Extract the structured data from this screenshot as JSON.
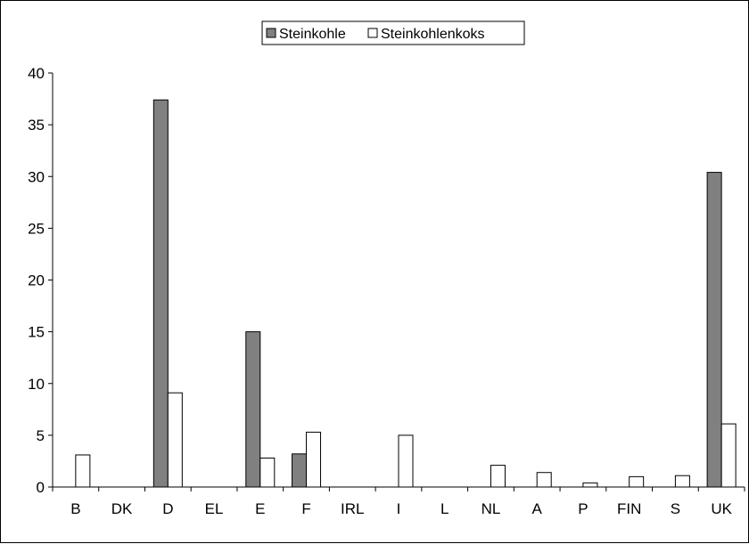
{
  "chart_data": {
    "type": "bar",
    "title": "",
    "xlabel": "",
    "ylabel": "",
    "categories": [
      "B",
      "DK",
      "D",
      "EL",
      "E",
      "F",
      "IRL",
      "I",
      "L",
      "NL",
      "A",
      "P",
      "FIN",
      "S",
      "UK"
    ],
    "series": [
      {
        "name": "Steinkohle",
        "color": "#808080",
        "values": [
          0,
          0,
          37.4,
          0,
          15.0,
          3.2,
          0,
          0,
          0,
          0,
          0,
          0,
          0,
          0,
          30.4
        ]
      },
      {
        "name": "Steinkohlenkoks",
        "color": "#ffffff",
        "values": [
          3.1,
          0,
          9.1,
          0,
          2.8,
          5.3,
          0,
          5.0,
          0,
          2.1,
          1.4,
          0.4,
          1.0,
          1.1,
          6.1
        ]
      }
    ],
    "ylim": [
      0,
      40
    ],
    "yticks": [
      0,
      5,
      10,
      15,
      20,
      25,
      30,
      35,
      40
    ],
    "grid": false,
    "legend": "top-center"
  }
}
